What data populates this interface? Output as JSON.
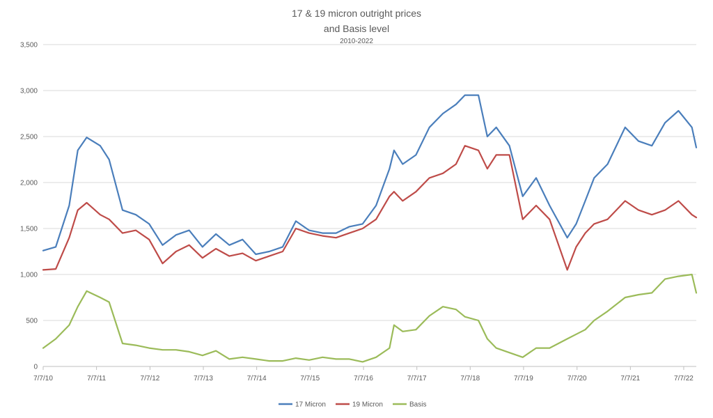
{
  "chart_data": {
    "type": "line",
    "title_lines": [
      "17 & 19 micron outright prices",
      "and Basis level"
    ],
    "subtitle": "2010-2022",
    "xlabel": "",
    "ylabel": "",
    "ylim": [
      0,
      3500
    ],
    "y_ticks": [
      0,
      500,
      1000,
      1500,
      2000,
      2500,
      3000,
      3500
    ],
    "y_tick_labels": [
      "0",
      "500",
      "1,000",
      "1,500",
      "2,000",
      "2,500",
      "3,000",
      "3,500"
    ],
    "x_tick_labels": [
      "7/7/10",
      "7/7/11",
      "7/7/12",
      "7/7/13",
      "7/7/14",
      "7/7/15",
      "7/7/16",
      "7/7/17",
      "7/7/18",
      "7/7/19",
      "7/7/20",
      "7/7/21",
      "7/7/22"
    ],
    "x_start": "2010-07-07",
    "x_end": "2022-10-01",
    "grid": "horizontal",
    "legend_position": "bottom-center",
    "series": [
      {
        "name": "17 Micron",
        "color": "#4a7ebb",
        "points": [
          [
            "2010-07-07",
            1260
          ],
          [
            "2010-10-01",
            1300
          ],
          [
            "2011-01-01",
            1750
          ],
          [
            "2011-03-01",
            2350
          ],
          [
            "2011-05-01",
            2490
          ],
          [
            "2011-08-01",
            2400
          ],
          [
            "2011-10-01",
            2250
          ],
          [
            "2012-01-01",
            1700
          ],
          [
            "2012-04-01",
            1650
          ],
          [
            "2012-07-01",
            1550
          ],
          [
            "2012-10-01",
            1320
          ],
          [
            "2013-01-01",
            1430
          ],
          [
            "2013-04-01",
            1480
          ],
          [
            "2013-07-01",
            1300
          ],
          [
            "2013-10-01",
            1440
          ],
          [
            "2014-01-01",
            1320
          ],
          [
            "2014-04-01",
            1380
          ],
          [
            "2014-07-01",
            1220
          ],
          [
            "2014-10-01",
            1250
          ],
          [
            "2015-01-01",
            1300
          ],
          [
            "2015-04-01",
            1580
          ],
          [
            "2015-07-01",
            1480
          ],
          [
            "2015-10-01",
            1450
          ],
          [
            "2016-01-01",
            1450
          ],
          [
            "2016-04-01",
            1520
          ],
          [
            "2016-07-01",
            1550
          ],
          [
            "2016-10-01",
            1750
          ],
          [
            "2017-01-01",
            2150
          ],
          [
            "2017-02-01",
            2350
          ],
          [
            "2017-04-01",
            2200
          ],
          [
            "2017-07-01",
            2300
          ],
          [
            "2017-10-01",
            2600
          ],
          [
            "2018-01-01",
            2750
          ],
          [
            "2018-04-01",
            2850
          ],
          [
            "2018-06-01",
            2950
          ],
          [
            "2018-09-01",
            2950
          ],
          [
            "2018-11-01",
            2500
          ],
          [
            "2019-01-01",
            2600
          ],
          [
            "2019-04-01",
            2400
          ],
          [
            "2019-07-01",
            1850
          ],
          [
            "2019-10-01",
            2050
          ],
          [
            "2020-01-01",
            1750
          ],
          [
            "2020-05-01",
            1400
          ],
          [
            "2020-07-01",
            1550
          ],
          [
            "2020-09-01",
            1800
          ],
          [
            "2020-11-01",
            2050
          ],
          [
            "2021-02-01",
            2200
          ],
          [
            "2021-06-01",
            2600
          ],
          [
            "2021-09-01",
            2450
          ],
          [
            "2021-12-01",
            2400
          ],
          [
            "2022-03-01",
            2650
          ],
          [
            "2022-06-01",
            2780
          ],
          [
            "2022-09-01",
            2600
          ],
          [
            "2022-10-01",
            2380
          ]
        ]
      },
      {
        "name": "19 Micron",
        "color": "#be4b48",
        "points": [
          [
            "2010-07-07",
            1050
          ],
          [
            "2010-10-01",
            1060
          ],
          [
            "2011-01-01",
            1400
          ],
          [
            "2011-03-01",
            1700
          ],
          [
            "2011-05-01",
            1780
          ],
          [
            "2011-08-01",
            1650
          ],
          [
            "2011-10-01",
            1600
          ],
          [
            "2012-01-01",
            1450
          ],
          [
            "2012-04-01",
            1480
          ],
          [
            "2012-07-01",
            1380
          ],
          [
            "2012-10-01",
            1120
          ],
          [
            "2013-01-01",
            1250
          ],
          [
            "2013-04-01",
            1320
          ],
          [
            "2013-07-01",
            1180
          ],
          [
            "2013-10-01",
            1280
          ],
          [
            "2014-01-01",
            1200
          ],
          [
            "2014-04-01",
            1230
          ],
          [
            "2014-07-01",
            1150
          ],
          [
            "2014-10-01",
            1200
          ],
          [
            "2015-01-01",
            1250
          ],
          [
            "2015-04-01",
            1500
          ],
          [
            "2015-07-01",
            1450
          ],
          [
            "2015-10-01",
            1420
          ],
          [
            "2016-01-01",
            1400
          ],
          [
            "2016-04-01",
            1450
          ],
          [
            "2016-07-01",
            1500
          ],
          [
            "2016-10-01",
            1600
          ],
          [
            "2017-01-01",
            1850
          ],
          [
            "2017-02-01",
            1900
          ],
          [
            "2017-04-01",
            1800
          ],
          [
            "2017-07-01",
            1900
          ],
          [
            "2017-10-01",
            2050
          ],
          [
            "2018-01-01",
            2100
          ],
          [
            "2018-04-01",
            2200
          ],
          [
            "2018-06-01",
            2400
          ],
          [
            "2018-09-01",
            2350
          ],
          [
            "2018-11-01",
            2150
          ],
          [
            "2019-01-01",
            2300
          ],
          [
            "2019-04-01",
            2300
          ],
          [
            "2019-07-01",
            1600
          ],
          [
            "2019-10-01",
            1750
          ],
          [
            "2020-01-01",
            1600
          ],
          [
            "2020-05-01",
            1050
          ],
          [
            "2020-07-01",
            1300
          ],
          [
            "2020-09-01",
            1450
          ],
          [
            "2020-11-01",
            1550
          ],
          [
            "2021-02-01",
            1600
          ],
          [
            "2021-06-01",
            1800
          ],
          [
            "2021-09-01",
            1700
          ],
          [
            "2021-12-01",
            1650
          ],
          [
            "2022-03-01",
            1700
          ],
          [
            "2022-06-01",
            1800
          ],
          [
            "2022-09-01",
            1650
          ],
          [
            "2022-10-01",
            1620
          ]
        ]
      },
      {
        "name": "Basis",
        "color": "#9bbb59",
        "points": [
          [
            "2010-07-07",
            200
          ],
          [
            "2010-10-01",
            300
          ],
          [
            "2011-01-01",
            450
          ],
          [
            "2011-03-01",
            650
          ],
          [
            "2011-05-01",
            820
          ],
          [
            "2011-08-01",
            750
          ],
          [
            "2011-10-01",
            700
          ],
          [
            "2012-01-01",
            250
          ],
          [
            "2012-04-01",
            230
          ],
          [
            "2012-07-01",
            200
          ],
          [
            "2012-10-01",
            180
          ],
          [
            "2013-01-01",
            180
          ],
          [
            "2013-04-01",
            160
          ],
          [
            "2013-07-01",
            120
          ],
          [
            "2013-10-01",
            170
          ],
          [
            "2014-01-01",
            80
          ],
          [
            "2014-04-01",
            100
          ],
          [
            "2014-07-01",
            80
          ],
          [
            "2014-10-01",
            60
          ],
          [
            "2015-01-01",
            60
          ],
          [
            "2015-04-01",
            90
          ],
          [
            "2015-07-01",
            70
          ],
          [
            "2015-10-01",
            100
          ],
          [
            "2016-01-01",
            80
          ],
          [
            "2016-04-01",
            80
          ],
          [
            "2016-07-01",
            50
          ],
          [
            "2016-10-01",
            100
          ],
          [
            "2017-01-01",
            200
          ],
          [
            "2017-02-01",
            450
          ],
          [
            "2017-04-01",
            380
          ],
          [
            "2017-07-01",
            400
          ],
          [
            "2017-10-01",
            550
          ],
          [
            "2018-01-01",
            650
          ],
          [
            "2018-04-01",
            620
          ],
          [
            "2018-06-01",
            540
          ],
          [
            "2018-09-01",
            500
          ],
          [
            "2018-11-01",
            300
          ],
          [
            "2019-01-01",
            200
          ],
          [
            "2019-04-01",
            150
          ],
          [
            "2019-07-01",
            100
          ],
          [
            "2019-10-01",
            200
          ],
          [
            "2020-01-01",
            200
          ],
          [
            "2020-05-01",
            300
          ],
          [
            "2020-07-01",
            350
          ],
          [
            "2020-09-01",
            400
          ],
          [
            "2020-11-01",
            500
          ],
          [
            "2021-02-01",
            600
          ],
          [
            "2021-06-01",
            750
          ],
          [
            "2021-09-01",
            780
          ],
          [
            "2021-12-01",
            800
          ],
          [
            "2022-03-01",
            950
          ],
          [
            "2022-06-01",
            980
          ],
          [
            "2022-09-01",
            1000
          ],
          [
            "2022-10-01",
            800
          ]
        ]
      }
    ]
  }
}
